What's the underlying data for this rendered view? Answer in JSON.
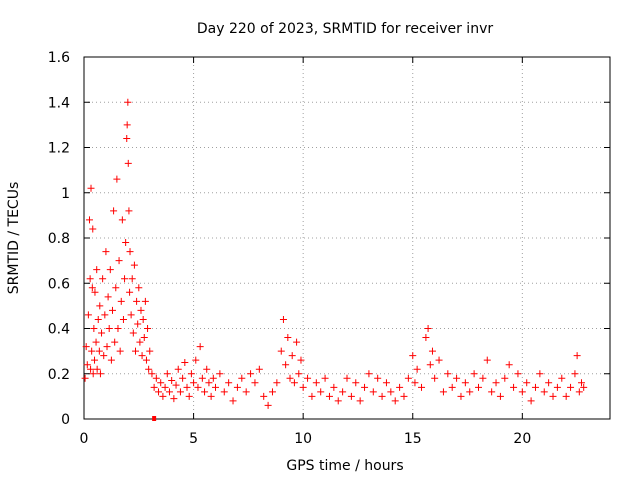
{
  "chart_data": {
    "type": "scatter",
    "title": "Day 220 of 2023, SRMTID for receiver invr",
    "xlabel": "GPS time / hours",
    "ylabel": "SRMTID / TECUs",
    "xlim": [
      0,
      24
    ],
    "ylim": [
      0,
      1.6
    ],
    "xticks": [
      0,
      5,
      10,
      15,
      20
    ],
    "xtick_labels": [
      "0",
      "5",
      "10",
      "15",
      "20"
    ],
    "yticks": [
      0,
      0.2,
      0.4,
      0.6,
      0.8,
      1.0,
      1.2,
      1.4,
      1.6
    ],
    "ytick_labels": [
      "0",
      "0.2",
      "0.4",
      "0.6",
      "0.8",
      "1",
      "1.2",
      "1.4",
      "1.6"
    ],
    "grid": true,
    "marker": "plus",
    "color": "#ff0000",
    "series": [
      {
        "name": "SRMTID",
        "points": [
          [
            0.05,
            0.18
          ],
          [
            0.1,
            0.32
          ],
          [
            0.15,
            0.24
          ],
          [
            0.2,
            0.46
          ],
          [
            0.25,
            0.88
          ],
          [
            0.28,
            0.62
          ],
          [
            0.3,
            0.22
          ],
          [
            0.32,
            1.02
          ],
          [
            0.35,
            0.3
          ],
          [
            0.38,
            0.58
          ],
          [
            0.4,
            0.84
          ],
          [
            0.42,
            0.2
          ],
          [
            0.45,
            0.4
          ],
          [
            0.48,
            0.26
          ],
          [
            0.5,
            0.56
          ],
          [
            0.55,
            0.34
          ],
          [
            0.58,
            0.66
          ],
          [
            0.6,
            0.22
          ],
          [
            0.65,
            0.44
          ],
          [
            0.7,
            0.3
          ],
          [
            0.72,
            0.5
          ],
          [
            0.75,
            0.2
          ],
          [
            0.8,
            0.38
          ],
          [
            0.85,
            0.62
          ],
          [
            0.9,
            0.28
          ],
          [
            0.95,
            0.46
          ],
          [
            1.0,
            0.74
          ],
          [
            1.05,
            0.32
          ],
          [
            1.1,
            0.54
          ],
          [
            1.15,
            0.4
          ],
          [
            1.2,
            0.66
          ],
          [
            1.25,
            0.26
          ],
          [
            1.3,
            0.48
          ],
          [
            1.35,
            0.92
          ],
          [
            1.4,
            0.34
          ],
          [
            1.45,
            0.58
          ],
          [
            1.5,
            1.06
          ],
          [
            1.55,
            0.4
          ],
          [
            1.6,
            0.7
          ],
          [
            1.65,
            0.3
          ],
          [
            1.7,
            0.52
          ],
          [
            1.75,
            0.88
          ],
          [
            1.8,
            0.44
          ],
          [
            1.85,
            0.62
          ],
          [
            1.9,
            0.78
          ],
          [
            1.95,
            1.24
          ],
          [
            1.97,
            1.3
          ],
          [
            2.0,
            1.4
          ],
          [
            2.02,
            1.13
          ],
          [
            2.05,
            0.92
          ],
          [
            2.08,
            0.56
          ],
          [
            2.1,
            0.74
          ],
          [
            2.15,
            0.46
          ],
          [
            2.2,
            0.62
          ],
          [
            2.25,
            0.38
          ],
          [
            2.3,
            0.68
          ],
          [
            2.35,
            0.3
          ],
          [
            2.4,
            0.52
          ],
          [
            2.45,
            0.42
          ],
          [
            2.5,
            0.58
          ],
          [
            2.55,
            0.34
          ],
          [
            2.6,
            0.48
          ],
          [
            2.65,
            0.28
          ],
          [
            2.7,
            0.44
          ],
          [
            2.75,
            0.36
          ],
          [
            2.8,
            0.52
          ],
          [
            2.85,
            0.26
          ],
          [
            2.9,
            0.4
          ],
          [
            2.95,
            0.22
          ],
          [
            3.0,
            0.3
          ],
          [
            3.1,
            0.2
          ],
          [
            3.2,
            0.14
          ],
          [
            3.3,
            0.18
          ],
          [
            3.4,
            0.12
          ],
          [
            3.5,
            0.16
          ],
          [
            3.6,
            0.1
          ],
          [
            3.7,
            0.14
          ],
          [
            3.8,
            0.2
          ],
          [
            3.9,
            0.12
          ],
          [
            4.0,
            0.17
          ],
          [
            4.1,
            0.09
          ],
          [
            4.2,
            0.15
          ],
          [
            4.3,
            0.22
          ],
          [
            4.4,
            0.12
          ],
          [
            4.5,
            0.18
          ],
          [
            4.6,
            0.25
          ],
          [
            4.7,
            0.14
          ],
          [
            4.8,
            0.1
          ],
          [
            4.9,
            0.2
          ],
          [
            5.0,
            0.16
          ],
          [
            5.1,
            0.26
          ],
          [
            5.2,
            0.14
          ],
          [
            5.3,
            0.32
          ],
          [
            5.4,
            0.18
          ],
          [
            5.5,
            0.12
          ],
          [
            5.6,
            0.22
          ],
          [
            5.7,
            0.16
          ],
          [
            5.8,
            0.1
          ],
          [
            5.9,
            0.18
          ],
          [
            6.0,
            0.14
          ],
          [
            6.2,
            0.2
          ],
          [
            6.4,
            0.12
          ],
          [
            6.6,
            0.16
          ],
          [
            6.8,
            0.08
          ],
          [
            7.0,
            0.14
          ],
          [
            7.2,
            0.18
          ],
          [
            7.4,
            0.12
          ],
          [
            7.6,
            0.2
          ],
          [
            7.8,
            0.16
          ],
          [
            8.0,
            0.22
          ],
          [
            8.2,
            0.1
          ],
          [
            8.4,
            0.06
          ],
          [
            8.6,
            0.12
          ],
          [
            8.8,
            0.16
          ],
          [
            9.0,
            0.3
          ],
          [
            9.1,
            0.44
          ],
          [
            9.2,
            0.24
          ],
          [
            9.3,
            0.36
          ],
          [
            9.4,
            0.18
          ],
          [
            9.5,
            0.28
          ],
          [
            9.6,
            0.16
          ],
          [
            9.7,
            0.34
          ],
          [
            9.8,
            0.2
          ],
          [
            9.9,
            0.26
          ],
          [
            10.0,
            0.14
          ],
          [
            10.2,
            0.18
          ],
          [
            10.4,
            0.1
          ],
          [
            10.6,
            0.16
          ],
          [
            10.8,
            0.12
          ],
          [
            11.0,
            0.18
          ],
          [
            11.2,
            0.1
          ],
          [
            11.4,
            0.14
          ],
          [
            11.6,
            0.08
          ],
          [
            11.8,
            0.12
          ],
          [
            12.0,
            0.18
          ],
          [
            12.2,
            0.1
          ],
          [
            12.4,
            0.16
          ],
          [
            12.6,
            0.08
          ],
          [
            12.8,
            0.14
          ],
          [
            13.0,
            0.2
          ],
          [
            13.2,
            0.12
          ],
          [
            13.4,
            0.18
          ],
          [
            13.6,
            0.1
          ],
          [
            13.8,
            0.16
          ],
          [
            14.0,
            0.12
          ],
          [
            14.2,
            0.08
          ],
          [
            14.4,
            0.14
          ],
          [
            14.6,
            0.1
          ],
          [
            14.8,
            0.18
          ],
          [
            15.0,
            0.28
          ],
          [
            15.1,
            0.16
          ],
          [
            15.2,
            0.22
          ],
          [
            15.4,
            0.14
          ],
          [
            15.6,
            0.36
          ],
          [
            15.7,
            0.4
          ],
          [
            15.8,
            0.24
          ],
          [
            15.9,
            0.3
          ],
          [
            16.0,
            0.18
          ],
          [
            16.2,
            0.26
          ],
          [
            16.4,
            0.12
          ],
          [
            16.6,
            0.2
          ],
          [
            16.8,
            0.14
          ],
          [
            17.0,
            0.18
          ],
          [
            17.2,
            0.1
          ],
          [
            17.4,
            0.16
          ],
          [
            17.6,
            0.12
          ],
          [
            17.8,
            0.2
          ],
          [
            18.0,
            0.14
          ],
          [
            18.2,
            0.18
          ],
          [
            18.4,
            0.26
          ],
          [
            18.6,
            0.12
          ],
          [
            18.8,
            0.16
          ],
          [
            19.0,
            0.1
          ],
          [
            19.2,
            0.18
          ],
          [
            19.4,
            0.24
          ],
          [
            19.6,
            0.14
          ],
          [
            19.8,
            0.2
          ],
          [
            20.0,
            0.12
          ],
          [
            20.2,
            0.16
          ],
          [
            20.4,
            0.08
          ],
          [
            20.6,
            0.14
          ],
          [
            20.8,
            0.2
          ],
          [
            21.0,
            0.12
          ],
          [
            21.2,
            0.16
          ],
          [
            21.4,
            0.1
          ],
          [
            21.6,
            0.14
          ],
          [
            21.8,
            0.18
          ],
          [
            22.0,
            0.1
          ],
          [
            22.2,
            0.14
          ],
          [
            22.4,
            0.2
          ],
          [
            22.5,
            0.28
          ],
          [
            22.6,
            0.12
          ],
          [
            22.7,
            0.16
          ],
          [
            22.8,
            0.14
          ]
        ]
      }
    ],
    "annotations": [
      {
        "type": "square-marker",
        "x": 3.2,
        "y": 0.0
      }
    ]
  }
}
